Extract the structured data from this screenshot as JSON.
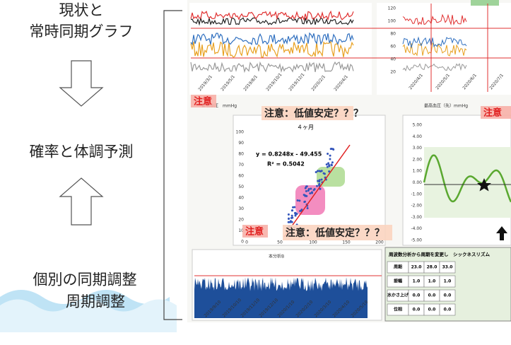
{
  "left": {
    "top_label": [
      "現状と",
      "常時同期グラフ"
    ],
    "middle_label": "確率と体調予測",
    "bottom_label": [
      "個別の同期調整",
      "周期調整"
    ]
  },
  "top_chart": {
    "dates": [
      "2019/3/1",
      "2019/5/1",
      "2019/8/1",
      "2019/10/1",
      "2019/12/1",
      "2020/2/1",
      "2020/4/1"
    ],
    "caption": "最低血圧　mmHg"
  },
  "top_right_chart": {
    "yticks": [
      "120",
      "100",
      "80",
      "60",
      "40",
      "20"
    ],
    "dates": [
      "2020/4/1",
      "2020/5/1",
      "2020/6/1",
      "2020/7/1"
    ],
    "caption": "最高血圧（先）mmHg"
  },
  "callouts": [
    "注意",
    "注意：低値安定？？？",
    "注意",
    "注意：低値安定？？？",
    "注意"
  ],
  "scatter": {
    "title": "４ヶ月",
    "equation": "y = 0.8248x - 49.455",
    "r2": "R² = 0.5042",
    "yticks": [
      "100",
      "90",
      "80",
      "70",
      "60",
      "50",
      "40",
      "30",
      "20",
      "10",
      "0"
    ],
    "xticks": [
      "0",
      "50",
      "100",
      "150",
      "200"
    ]
  },
  "wave_chart": {
    "yticks": [
      "5.00",
      "4.00",
      "3.00",
      "2.00",
      "1.00",
      "0.00",
      "-1.00",
      "-2.00",
      "-3.00",
      "-4.00",
      "-5.00"
    ]
  },
  "bottom_chart": {
    "caption": "本分析B",
    "dates": [
      "2019/9/10",
      "2019/10/10",
      "2019/11/10",
      "2019/12/10",
      "2020/1/10",
      "2020/2/10",
      "2020/3/10",
      "2020/4/10",
      "2020/5/10"
    ]
  },
  "table": {
    "title": "周波数分析から周期を変更し　シックネスリズム",
    "rows": [
      [
        "周期",
        "23.0",
        "28.0",
        "33.0"
      ],
      [
        "振幅",
        "1.0",
        "1.0",
        "1.0"
      ],
      [
        "水かさ上げ",
        "0.0",
        "0.0",
        "0.0"
      ],
      [
        "位相",
        "0.0",
        "0.0",
        "0.0"
      ]
    ]
  }
}
